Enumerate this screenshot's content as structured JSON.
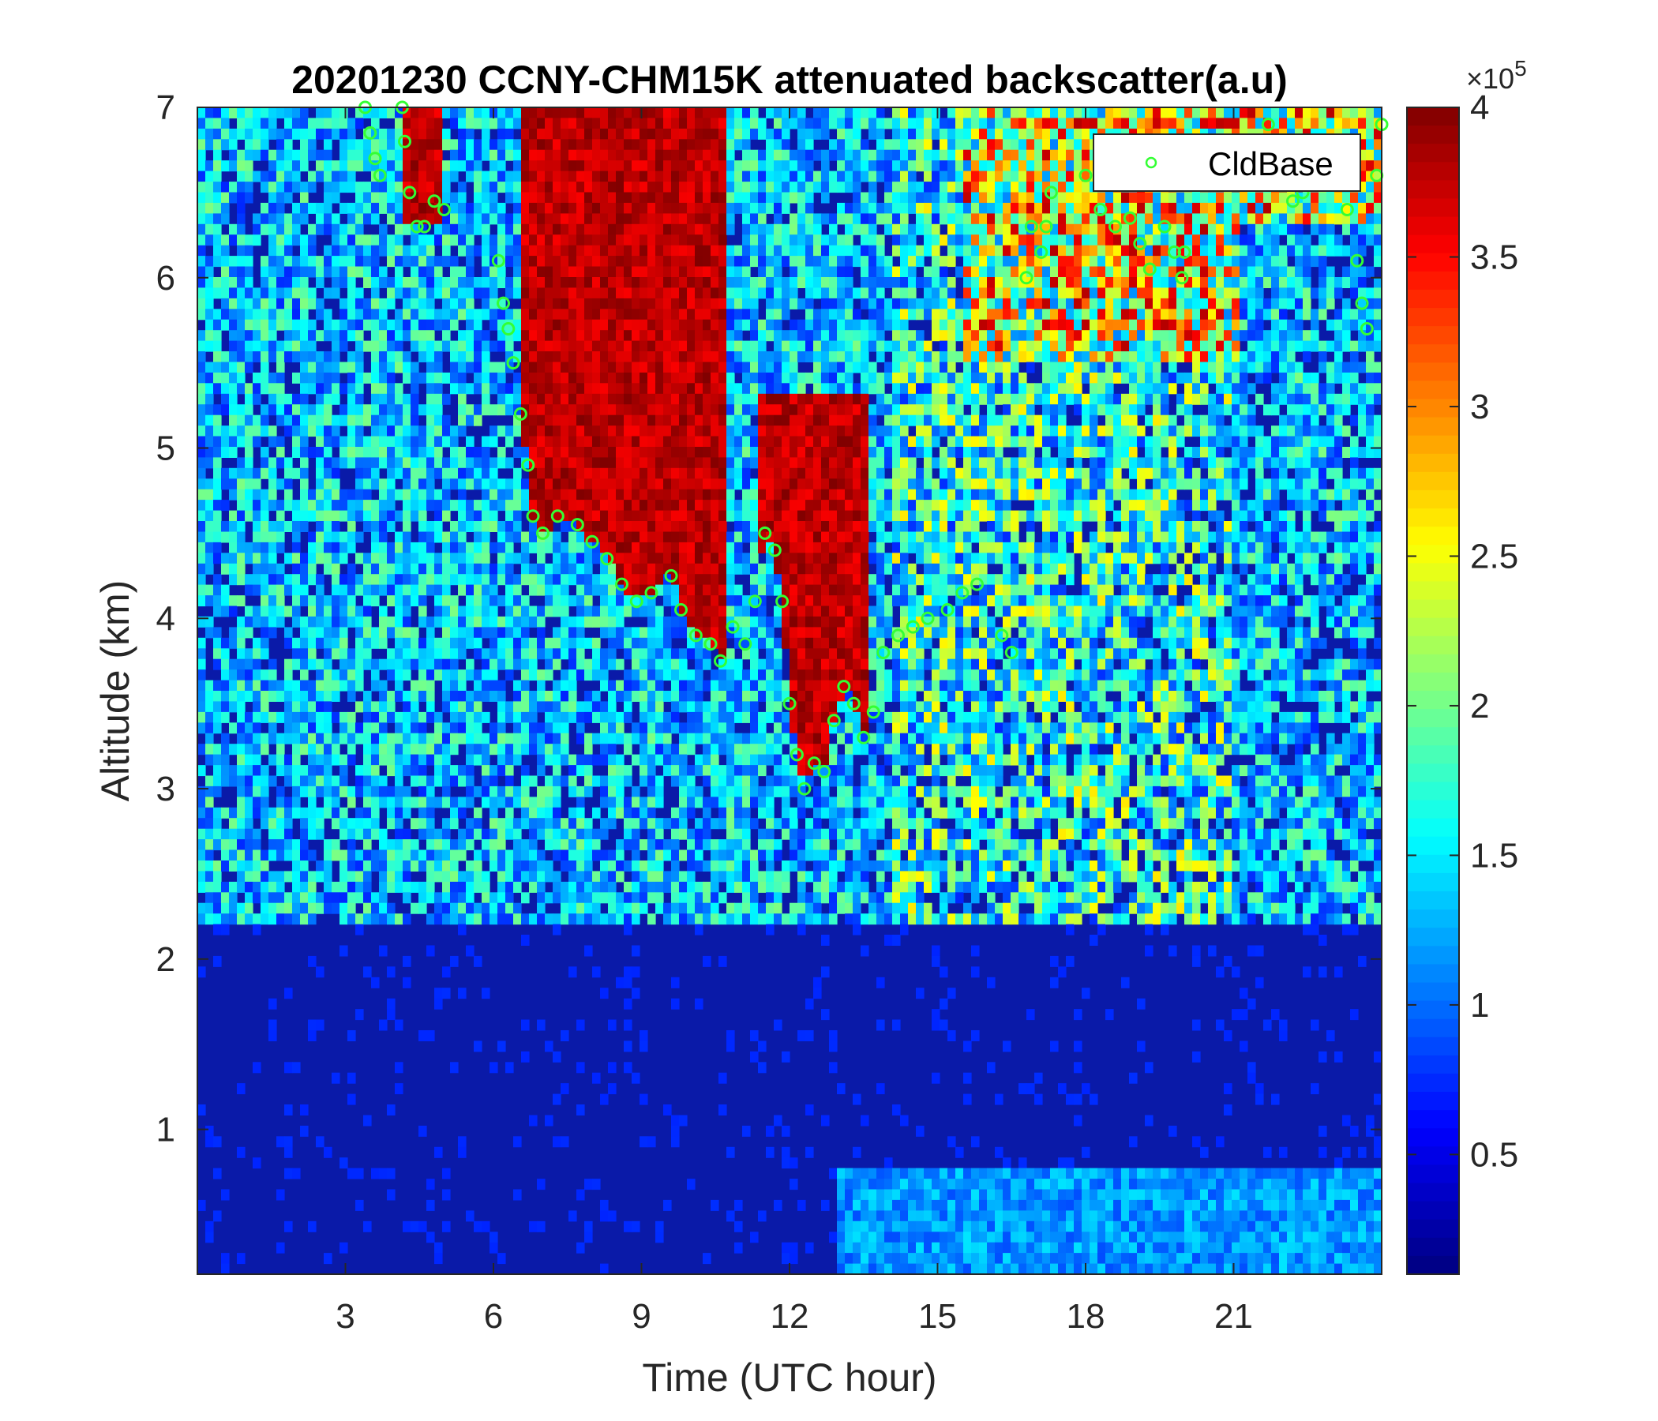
{
  "chart_data": {
    "type": "heatmap",
    "title": "20201230 CCNY-CHM15K attenuated backscatter(a.u)",
    "xlabel": "Time (UTC hour)",
    "ylabel": "Altitude (km)",
    "xlim": [
      0,
      24
    ],
    "ylim": [
      0.15,
      7
    ],
    "x_ticks": [
      3,
      6,
      9,
      12,
      15,
      18,
      21
    ],
    "y_ticks": [
      1,
      2,
      3,
      4,
      5,
      6,
      7
    ],
    "colorbar": {
      "colormap": "jet",
      "clim": [
        0.1,
        4
      ],
      "ticks": [
        0.5,
        1,
        1.5,
        2,
        2.5,
        3,
        3.5,
        4
      ],
      "exponent_label": "×10",
      "exponent_power": "5"
    },
    "legend": {
      "position": "top-right",
      "entries": [
        "CldBase"
      ]
    },
    "series": [
      {
        "name": "CldBase",
        "marker": "circle",
        "color": "#33ff33",
        "points": [
          [
            3.4,
            7.0
          ],
          [
            3.5,
            6.85
          ],
          [
            3.6,
            6.7
          ],
          [
            3.7,
            6.6
          ],
          [
            4.15,
            7.0
          ],
          [
            4.2,
            6.8
          ],
          [
            4.3,
            6.5
          ],
          [
            4.45,
            6.3
          ],
          [
            4.6,
            6.3
          ],
          [
            4.8,
            6.45
          ],
          [
            5.0,
            6.4
          ],
          [
            6.1,
            6.1
          ],
          [
            6.2,
            5.85
          ],
          [
            6.3,
            5.7
          ],
          [
            6.4,
            5.5
          ],
          [
            6.55,
            5.2
          ],
          [
            6.7,
            4.9
          ],
          [
            6.8,
            4.6
          ],
          [
            7.0,
            4.5
          ],
          [
            7.3,
            4.6
          ],
          [
            7.7,
            4.55
          ],
          [
            8.0,
            4.45
          ],
          [
            8.3,
            4.35
          ],
          [
            8.6,
            4.2
          ],
          [
            8.9,
            4.1
          ],
          [
            9.2,
            4.15
          ],
          [
            9.6,
            4.25
          ],
          [
            9.8,
            4.05
          ],
          [
            10.1,
            3.9
          ],
          [
            10.4,
            3.85
          ],
          [
            10.6,
            3.75
          ],
          [
            10.85,
            3.95
          ],
          [
            11.1,
            3.85
          ],
          [
            11.3,
            4.1
          ],
          [
            11.5,
            4.5
          ],
          [
            11.7,
            4.4
          ],
          [
            11.85,
            4.1
          ],
          [
            12.0,
            3.5
          ],
          [
            12.15,
            3.2
          ],
          [
            12.3,
            3.0
          ],
          [
            12.5,
            3.15
          ],
          [
            12.7,
            3.1
          ],
          [
            12.9,
            3.4
          ],
          [
            13.1,
            3.6
          ],
          [
            13.3,
            3.5
          ],
          [
            13.5,
            3.3
          ],
          [
            13.7,
            3.45
          ],
          [
            13.9,
            3.8
          ],
          [
            14.2,
            3.9
          ],
          [
            14.5,
            3.95
          ],
          [
            14.8,
            4.0
          ],
          [
            15.2,
            4.05
          ],
          [
            15.5,
            4.15
          ],
          [
            15.8,
            4.2
          ],
          [
            16.3,
            3.9
          ],
          [
            16.5,
            3.8
          ],
          [
            16.8,
            6.0
          ],
          [
            16.9,
            6.3
          ],
          [
            17.1,
            6.15
          ],
          [
            17.2,
            6.3
          ],
          [
            17.3,
            6.5
          ],
          [
            18.0,
            6.6
          ],
          [
            18.3,
            6.4
          ],
          [
            18.6,
            6.3
          ],
          [
            18.9,
            6.35
          ],
          [
            19.1,
            6.2
          ],
          [
            19.3,
            6.05
          ],
          [
            19.45,
            6.8
          ],
          [
            19.6,
            6.3
          ],
          [
            19.8,
            6.15
          ],
          [
            19.95,
            6.0
          ],
          [
            20.0,
            6.15
          ],
          [
            21.3,
            6.6
          ],
          [
            21.7,
            6.9
          ],
          [
            22.2,
            6.45
          ],
          [
            22.4,
            6.5
          ],
          [
            23.0,
            6.6
          ],
          [
            23.3,
            6.4
          ],
          [
            23.5,
            6.1
          ],
          [
            23.6,
            5.85
          ],
          [
            23.7,
            5.7
          ],
          [
            23.9,
            6.6
          ],
          [
            24.0,
            6.9
          ]
        ]
      }
    ]
  }
}
